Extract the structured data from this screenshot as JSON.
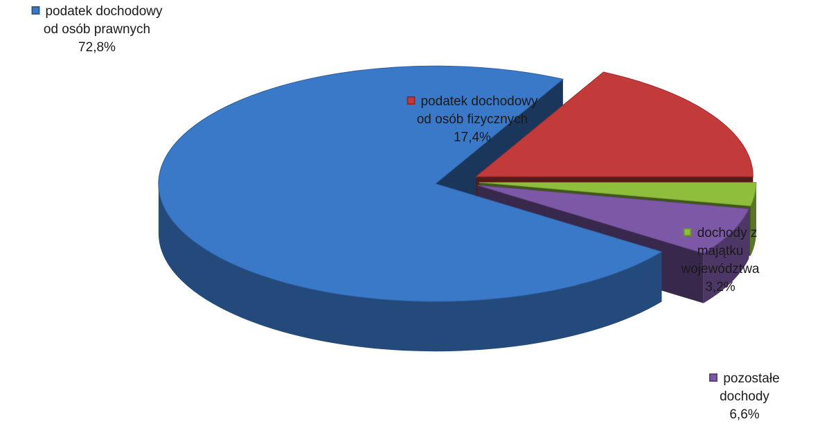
{
  "chart_data": {
    "type": "pie",
    "categories": [
      "podatek dochodowy\nod osób prawnych",
      "podatek dochodowy\nod osób fizycznych",
      "dochody z majątku\nwojewództwa",
      "pozostałe dochody"
    ],
    "values": [
      72.8,
      17.4,
      3.2,
      6.6
    ],
    "value_labels": [
      "72,8%",
      "17,4%",
      "3,2%",
      "6,6%"
    ],
    "colors": [
      "#3a78c8",
      "#c23a3a",
      "#8fbd3c",
      "#7c58a6"
    ]
  }
}
